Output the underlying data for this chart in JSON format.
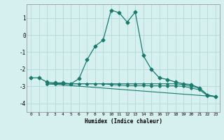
{
  "xlabel": "Humidex (Indice chaleur)",
  "background_color": "#d6f0f0",
  "grid_color": "#b8dcdc",
  "line_color": "#1a7a6e",
  "xlim": [
    -0.5,
    23.5
  ],
  "ylim": [
    -4.5,
    1.8
  ],
  "yticks": [
    -4,
    -3,
    -2,
    -1,
    0,
    1
  ],
  "xticks": [
    0,
    1,
    2,
    3,
    4,
    5,
    6,
    7,
    8,
    9,
    10,
    11,
    12,
    13,
    14,
    15,
    16,
    17,
    18,
    19,
    20,
    21,
    22,
    23
  ],
  "series1_x": [
    0,
    1,
    2,
    3,
    4,
    5,
    6,
    7,
    8,
    9,
    10,
    11,
    12,
    13,
    14,
    15,
    16,
    17,
    18,
    19,
    20,
    21,
    22,
    23
  ],
  "series1_y": [
    -2.5,
    -2.5,
    -2.75,
    -2.8,
    -2.8,
    -2.85,
    -2.55,
    -1.45,
    -0.65,
    -0.3,
    1.45,
    1.3,
    0.75,
    1.35,
    -1.2,
    -2.0,
    -2.5,
    -2.6,
    -2.75,
    -2.85,
    -2.9,
    -3.1,
    -3.5,
    -3.6
  ],
  "series2_x": [
    2,
    3,
    4,
    5,
    6,
    7,
    8,
    9,
    10,
    11,
    12,
    13,
    14,
    15,
    16,
    17,
    18,
    19,
    20,
    21,
    22,
    23
  ],
  "series2_y": [
    -2.85,
    -2.85,
    -2.85,
    -2.85,
    -2.85,
    -2.85,
    -2.85,
    -2.85,
    -2.85,
    -2.85,
    -2.85,
    -2.85,
    -2.85,
    -2.85,
    -2.85,
    -2.85,
    -2.85,
    -2.9,
    -3.0,
    -3.1,
    -3.5,
    -3.6
  ],
  "series3_x": [
    2,
    3,
    4,
    5,
    6,
    7,
    8,
    9,
    10,
    11,
    12,
    13,
    14,
    15,
    16,
    17,
    18,
    19,
    20,
    21,
    22,
    23
  ],
  "series3_y": [
    -2.85,
    -2.85,
    -2.85,
    -2.85,
    -2.85,
    -2.85,
    -2.85,
    -2.85,
    -2.9,
    -2.92,
    -2.95,
    -2.95,
    -2.95,
    -2.97,
    -2.97,
    -2.97,
    -2.97,
    -3.0,
    -3.1,
    -3.2,
    -3.55,
    -3.6
  ],
  "series4_x": [
    2,
    23
  ],
  "series4_y": [
    -2.85,
    -3.6
  ]
}
